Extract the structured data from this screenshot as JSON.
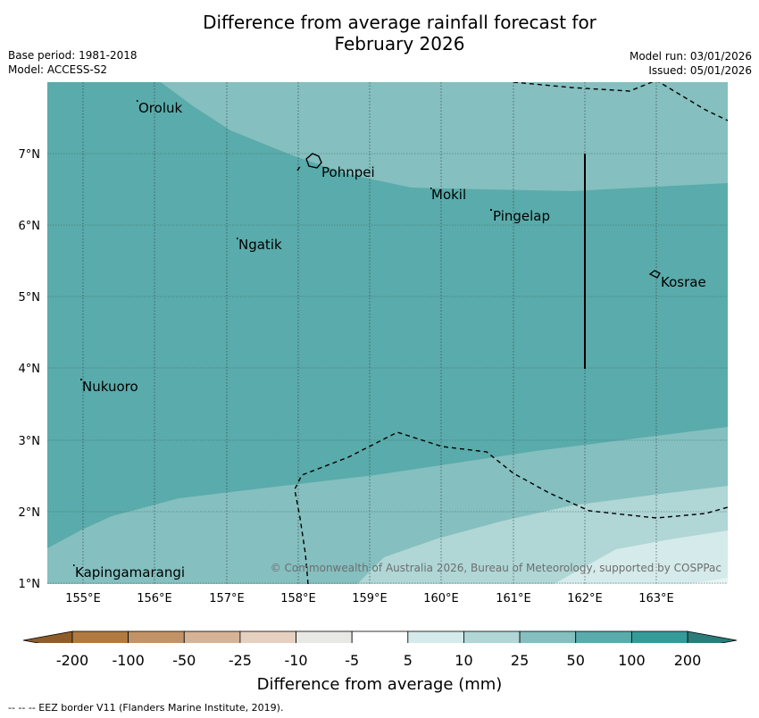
{
  "title": {
    "line1": "Difference from average rainfall forecast for",
    "line2": "February 2026"
  },
  "meta": {
    "base_period": "Base period: 1981-2018",
    "model": "Model: ACCESS-S2",
    "model_run": "Model run: 03/01/2026",
    "issued": "Issued: 05/01/2026"
  },
  "map": {
    "lon_labels": [
      "155°E",
      "156°E",
      "157°E",
      "158°E",
      "159°E",
      "160°E",
      "161°E",
      "162°E",
      "163°E"
    ],
    "lat_labels": [
      "7°N",
      "6°N",
      "5°N",
      "4°N",
      "3°N",
      "2°N",
      "1°N"
    ],
    "places": [
      "Oroluk",
      "Pohnpei",
      "Mokil",
      "Pingelap",
      "Ngatik",
      "Kosrae",
      "Nukuoro",
      "Kapingamarangi"
    ],
    "copyright": "© Commonwealth of Australia 2026, Bureau of Meteorology, supported by COSPPac",
    "colors": {
      "band_50_100": "#5aabab",
      "band_25_50": "#85bfbf",
      "band_10_25": "#b0d6d6",
      "band_5_10": "#d5eaea"
    }
  },
  "colorbar": {
    "labels": [
      "-200",
      "-100",
      "-50",
      "-25",
      "-10",
      "-5",
      "5",
      "10",
      "25",
      "50",
      "100",
      "200"
    ],
    "colors": [
      "#b07a40",
      "#c39368",
      "#d6b396",
      "#e6d1c0",
      "#e8e8e4",
      "#ffffff",
      "#d5eaea",
      "#b0d6d6",
      "#85bfbf",
      "#5aabab",
      "#349b99"
    ],
    "end_low": "#8f5c2a",
    "end_high": "#2a7d78",
    "title": "Difference from average (mm)"
  },
  "footnote": "--  --  -- EEZ border V11 (Flanders Marine Institute, 2019)."
}
